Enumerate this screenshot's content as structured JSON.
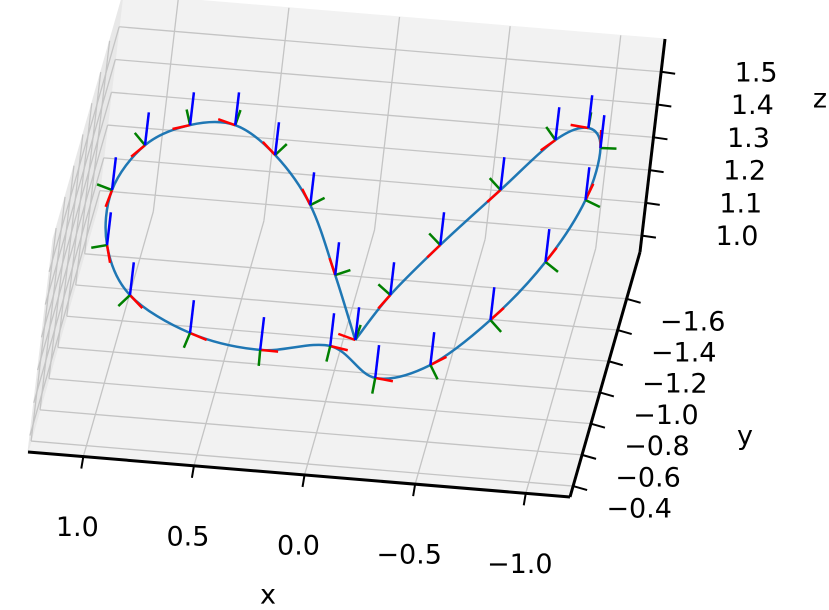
{
  "chart_data": {
    "type": "line3d",
    "x_label": "x",
    "y_label": "y",
    "z_label": "z",
    "series": [
      {
        "color": "#1f77b4",
        "x": [
          -0.078,
          0.068,
          0.242,
          0.436,
          0.633,
          0.825,
          1.006,
          1.112,
          1.089,
          0.949,
          0.653,
          0.334,
          0.037,
          -0.197,
          -0.434,
          -0.662,
          -0.856,
          -0.979,
          -0.999,
          -0.93,
          -0.795,
          -0.591,
          -0.37,
          -0.193,
          -0.078
        ],
        "y": [
          -0.994,
          -1.183,
          -1.401,
          -1.489,
          -1.51,
          -1.425,
          -1.338,
          -1.185,
          -1.045,
          -0.951,
          -0.89,
          -0.924,
          -1.047,
          -0.912,
          -0.939,
          -1.086,
          -1.271,
          -1.472,
          -1.64,
          -1.676,
          -1.625,
          -1.491,
          -1.322,
          -1.149,
          -0.994
        ],
        "z": [
          1.05,
          1.15,
          1.25,
          1.35,
          1.42,
          1.45,
          1.42,
          1.35,
          1.25,
          1.15,
          1.08,
          1.03,
          1.0,
          0.98,
          1.02,
          1.1,
          1.2,
          1.3,
          1.38,
          1.42,
          1.4,
          1.3,
          1.2,
          1.12,
          1.05
        ]
      }
    ],
    "frame_colors": [
      "#ff0000",
      "#008000",
      "#0000ff"
    ],
    "xlim": [
      1.25,
      -1.2
    ],
    "ylim": [
      -0.33,
      -1.9
    ],
    "zlim": [
      0.95,
      1.6
    ],
    "xticks": [
      {
        "value": 1,
        "label": "1.0"
      },
      0.5,
      {
        "value": 0,
        "label": "0.0"
      },
      {
        "value": -0.5,
        "label": "−0.5"
      },
      {
        "value": -1,
        "label": "−1.0"
      }
    ],
    "yticks": [
      {
        "value": -1.6,
        "label": "−1.6"
      },
      {
        "value": -1.4,
        "label": "−1.4"
      },
      {
        "value": -1.2,
        "label": "−1.2"
      },
      {
        "value": -1,
        "label": "−1.0"
      },
      {
        "value": -0.8,
        "label": "−0.8"
      },
      {
        "value": -0.6,
        "label": "−0.6"
      },
      {
        "value": -0.4,
        "label": "−0.4"
      }
    ],
    "zticks": [
      {
        "value": 1,
        "label": "1.0"
      },
      1.1,
      1.2,
      1.3,
      1.4,
      1.5
    ],
    "grid": true
  }
}
